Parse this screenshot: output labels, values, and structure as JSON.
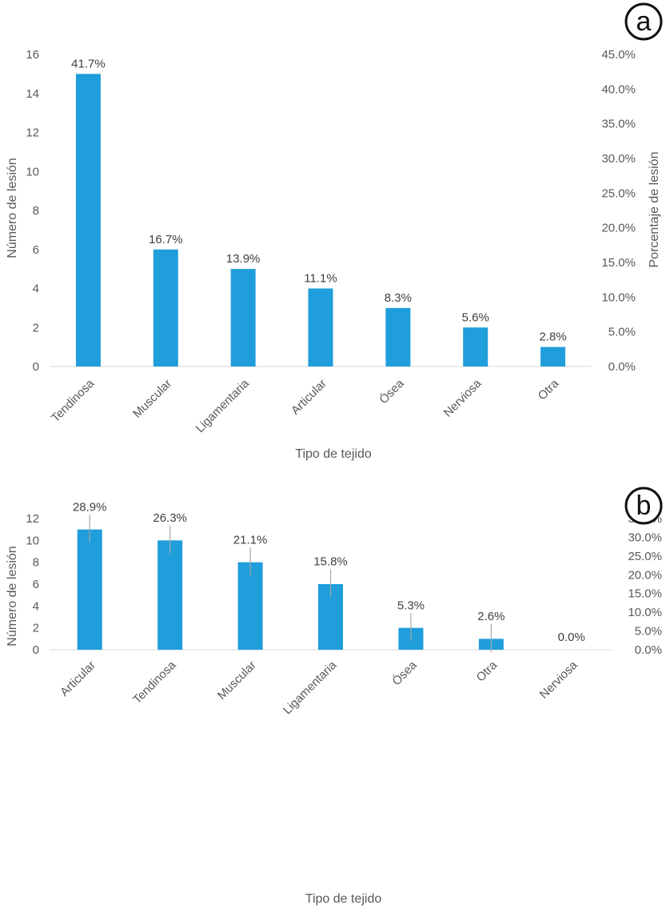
{
  "colors": {
    "bar": "#1f9edb",
    "axis": "#d9d9d9",
    "text": "#595959",
    "label": "#404040",
    "errbar": "#a6a6a6"
  },
  "chart_data": [
    {
      "panel_label": "a",
      "type": "bar",
      "categories": [
        "Tendinosa",
        "Muscular",
        "Ligamentaria",
        "Articular",
        "Ósea",
        "Nerviosa",
        "Otra"
      ],
      "values": [
        15,
        6,
        5,
        4,
        3,
        2,
        1
      ],
      "data_labels": [
        "41.7%",
        "16.7%",
        "13.9%",
        "11.1%",
        "8.3%",
        "5.6%",
        "2.8%"
      ],
      "xlabel": "Tipo de tejido",
      "ylabel": "Número de lesión",
      "y2label": "Porcentaje de lesión",
      "ylim": [
        0,
        16
      ],
      "yticks": [
        "0",
        "2",
        "4",
        "6",
        "8",
        "10",
        "12",
        "14",
        "16"
      ],
      "y2ticks": [
        "0.0%",
        "5.0%",
        "10.0%",
        "15.0%",
        "20.0%",
        "25.0%",
        "30.0%",
        "35.0%",
        "40.0%",
        "45.0%"
      ],
      "error_bars": false,
      "grid": false
    },
    {
      "panel_label": "b",
      "type": "bar",
      "categories": [
        "Articular",
        "Tendinosa",
        "Muscular",
        "Ligamentaria",
        "Ósea",
        "Otra",
        "Nerviosa"
      ],
      "values": [
        11,
        10,
        8,
        6,
        2,
        1,
        0
      ],
      "data_labels": [
        "28.9%",
        "26.3%",
        "21.1%",
        "15.8%",
        "5.3%",
        "2.6%",
        "0.0%"
      ],
      "xlabel": "Tipo de tejido",
      "ylabel": "Número de lesión",
      "y2label": "",
      "ylim": [
        0,
        12
      ],
      "yticks": [
        "0",
        "2",
        "4",
        "6",
        "8",
        "10",
        "12"
      ],
      "y2ticks": [
        "0.0%",
        "5.0%",
        "10.0%",
        "15.0%",
        "20.0%",
        "25.0%",
        "30.0%",
        "35.0%"
      ],
      "error_bars": true,
      "error_bar_half_width": 1.2,
      "grid": false
    }
  ]
}
